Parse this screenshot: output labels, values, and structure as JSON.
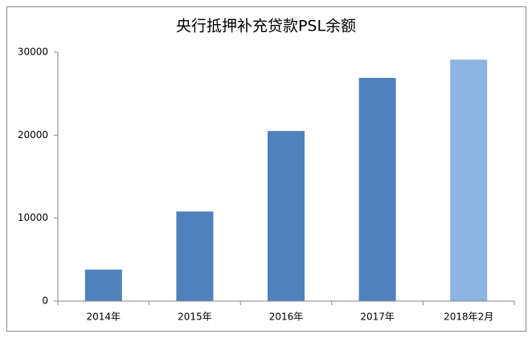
{
  "chart_data": {
    "type": "bar",
    "title": "央行抵押补充贷款PSL余额",
    "categories": [
      "2014年",
      "2015年",
      "2016年",
      "2017年",
      "2018年2月"
    ],
    "values": [
      3800,
      10800,
      20500,
      26900,
      29100
    ],
    "colors": [
      "#4f81bd",
      "#4f81bd",
      "#4f81bd",
      "#4f81bd",
      "#8eb4e3"
    ],
    "ylim": [
      0,
      30000
    ],
    "yticks": [
      0,
      10000,
      20000,
      30000
    ],
    "grid": false
  }
}
